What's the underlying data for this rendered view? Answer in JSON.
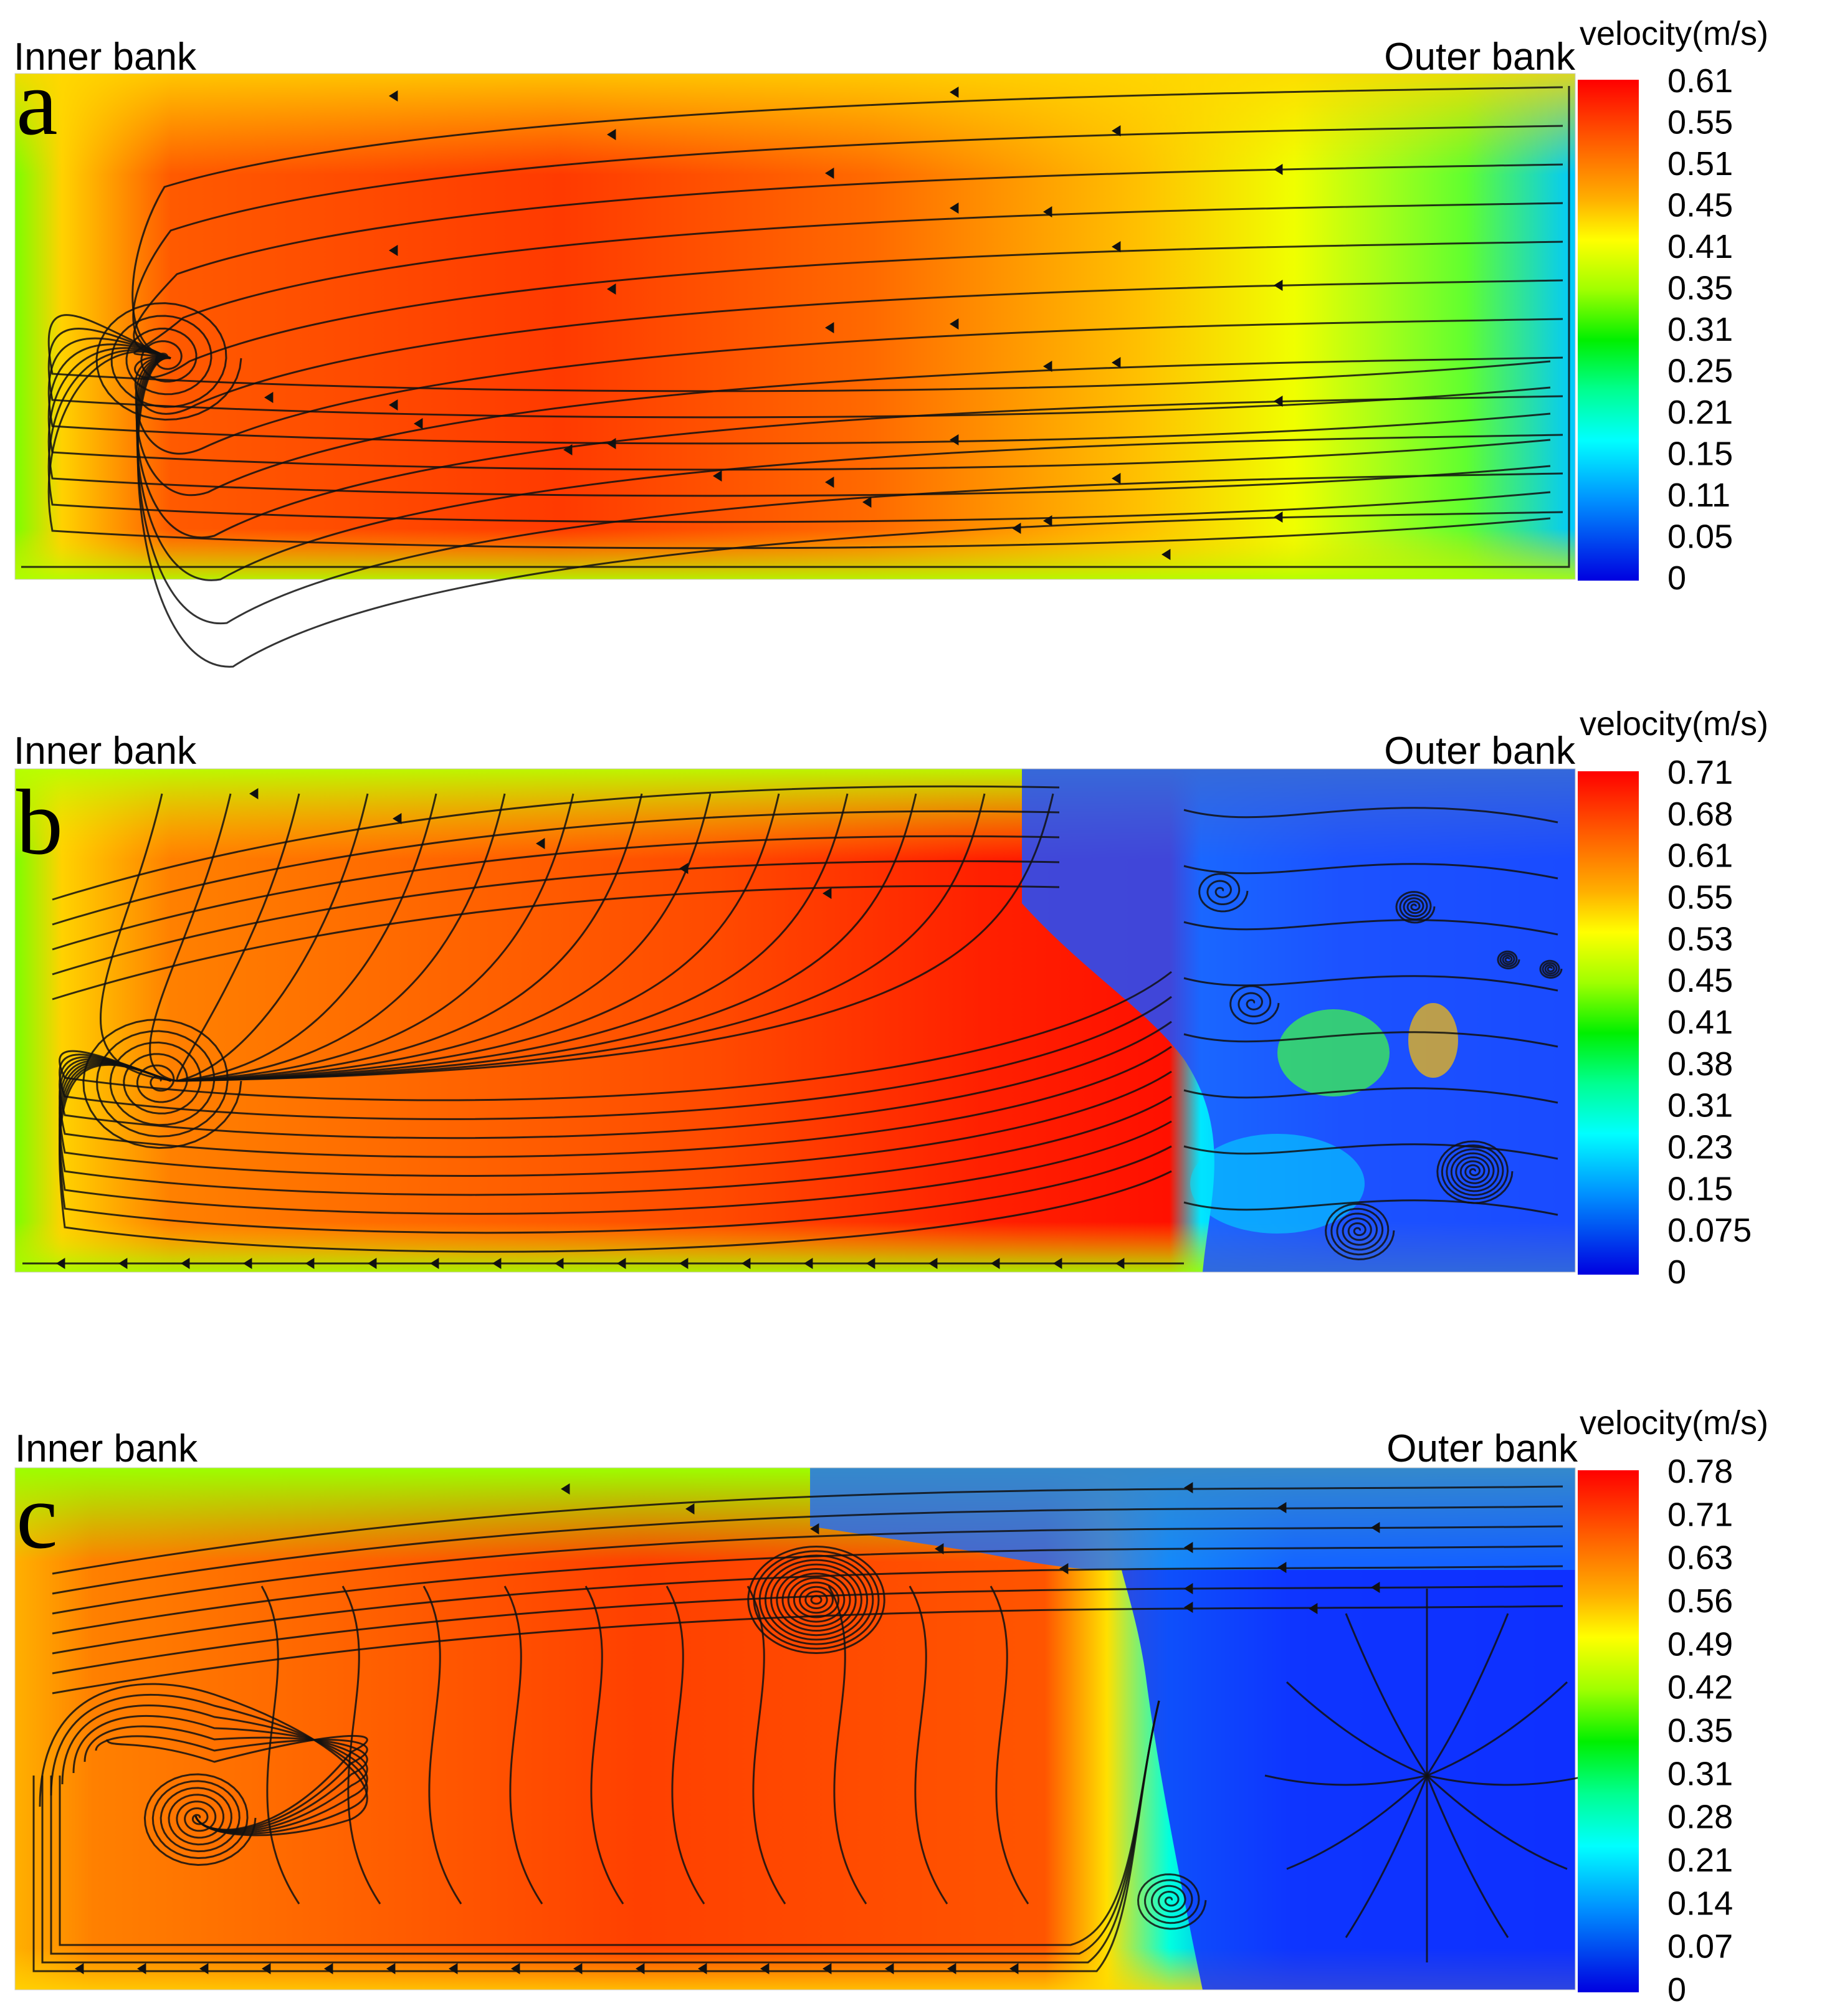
{
  "figure": {
    "panels": [
      {
        "letter": "a",
        "left_label": "Inner bank",
        "right_label": "Outer bank",
        "colorbar_title": "velocity(m/s)",
        "ticks": [
          "0.61",
          "0.55",
          "0.51",
          "0.45",
          "0.41",
          "0.35",
          "0.31",
          "0.25",
          "0.21",
          "0.15",
          "0.11",
          "0.05",
          "0"
        ]
      },
      {
        "letter": "b",
        "left_label": "Inner bank",
        "right_label": "Outer bank",
        "colorbar_title": "velocity(m/s)",
        "ticks": [
          "0.71",
          "0.68",
          "0.61",
          "0.55",
          "0.53",
          "0.45",
          "0.41",
          "0.38",
          "0.31",
          "0.23",
          "0.15",
          "0.075",
          "0"
        ]
      },
      {
        "letter": "c",
        "left_label": "Inner bank",
        "right_label": "Outer bank",
        "colorbar_title": "velocity(m/s)",
        "ticks": [
          "0.78",
          "0.71",
          "0.63",
          "0.56",
          "0.49",
          "0.42",
          "0.35",
          "0.31",
          "0.28",
          "0.21",
          "0.14",
          "0.07",
          "0"
        ]
      }
    ],
    "colormap": [
      "#ff0000",
      "#ff4a00",
      "#ff9a00",
      "#ffd800",
      "#e8ff00",
      "#8cff00",
      "#00f000",
      "#00ff80",
      "#00ffff",
      "#00b8ff",
      "#0060ff",
      "#0010ff",
      "#0000e0"
    ]
  }
}
